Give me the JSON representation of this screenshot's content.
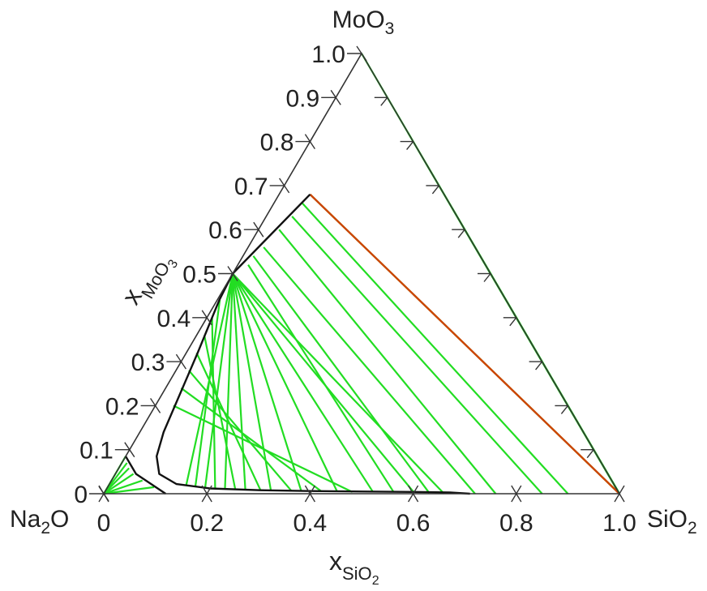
{
  "chart_data": {
    "type": "ternary",
    "components": {
      "bottom_left": "Na",
      "bottom_left_sub": "2",
      "bottom_left_tail": "O",
      "bottom_right": "SiO",
      "bottom_right_sub": "2",
      "top": "MoO",
      "top_sub": "3"
    },
    "xlabel": "x",
    "xlabel_sub": "SiO",
    "xlabel_sub2": "2",
    "ylabel": "x",
    "ylabel_sub": "MoO",
    "ylabel_sub2": "3",
    "x_ticks": [
      {
        "value": 0,
        "label": "0"
      },
      {
        "value": 0.2,
        "label": "0.2"
      },
      {
        "value": 0.4,
        "label": "0.4"
      },
      {
        "value": 0.6,
        "label": "0.6"
      },
      {
        "value": 0.8,
        "label": "0.8"
      },
      {
        "value": 1.0,
        "label": "1.0"
      }
    ],
    "y_ticks": [
      {
        "value": 0,
        "label": "0"
      },
      {
        "value": 0.1,
        "label": "0.1"
      },
      {
        "value": 0.2,
        "label": "0.2"
      },
      {
        "value": 0.3,
        "label": "0.3"
      },
      {
        "value": 0.4,
        "label": "0.4"
      },
      {
        "value": 0.5,
        "label": "0.5"
      },
      {
        "value": 0.6,
        "label": "0.6"
      },
      {
        "value": 0.7,
        "label": "0.7"
      },
      {
        "value": 0.8,
        "label": "0.8"
      },
      {
        "value": 0.9,
        "label": "0.9"
      },
      {
        "value": 1.0,
        "label": "1.0"
      }
    ],
    "right_edge_ticks": [
      0.1,
      0.2,
      0.3,
      0.4,
      0.5,
      0.6,
      0.7,
      0.8,
      0.9
    ],
    "phase_boundary_main": [
      [
        0.0,
        0.5
      ],
      [
        0.004,
        0.44
      ],
      [
        0.013,
        0.38
      ],
      [
        0.022,
        0.32
      ],
      [
        0.03,
        0.26
      ],
      [
        0.038,
        0.2
      ],
      [
        0.046,
        0.14
      ],
      [
        0.06,
        0.085
      ],
      [
        0.085,
        0.045
      ],
      [
        0.13,
        0.022
      ],
      [
        0.2,
        0.012
      ],
      [
        0.3,
        0.008
      ],
      [
        0.4,
        0.006
      ],
      [
        0.5,
        0.005
      ],
      [
        0.6,
        0.004
      ],
      [
        0.67,
        0.003
      ],
      [
        0.71,
        0.0
      ]
    ],
    "phase_boundary_upper": [
      [
        0.0,
        0.5
      ],
      [
        0.06,
        0.68
      ]
    ],
    "phase_boundary_corner": [
      [
        0.0,
        0.085
      ],
      [
        0.04,
        0.045
      ],
      [
        0.12,
        0.0
      ]
    ],
    "tie_lines": [
      {
        "from": [
          0.0,
          0.5
        ],
        "to": [
          0.15,
          0.02
        ]
      },
      {
        "from": [
          0.0,
          0.5
        ],
        "to": [
          0.19,
          0.013
        ]
      },
      {
        "from": [
          0.0,
          0.5
        ],
        "to": [
          0.23,
          0.01
        ]
      },
      {
        "from": [
          0.0,
          0.5
        ],
        "to": [
          0.27,
          0.009
        ]
      },
      {
        "from": [
          0.0,
          0.5
        ],
        "to": [
          0.32,
          0.008
        ]
      },
      {
        "from": [
          0.0,
          0.5
        ],
        "to": [
          0.38,
          0.006
        ]
      },
      {
        "from": [
          0.0,
          0.5
        ],
        "to": [
          0.45,
          0.005
        ]
      },
      {
        "from": [
          0.0,
          0.5
        ],
        "to": [
          0.52,
          0.004
        ]
      },
      {
        "from": [
          0.0,
          0.5
        ],
        "to": [
          0.6,
          0.003
        ]
      },
      {
        "from": [
          0.0,
          0.5
        ],
        "to": [
          0.66,
          0.0
        ]
      },
      {
        "from": [
          0.005,
          0.44
        ],
        "to": [
          0.17,
          0.015
        ]
      },
      {
        "from": [
          0.01,
          0.4
        ],
        "to": [
          0.21,
          0.012
        ]
      },
      {
        "from": [
          0.015,
          0.36
        ],
        "to": [
          0.25,
          0.01
        ]
      },
      {
        "from": [
          0.02,
          0.32
        ],
        "to": [
          0.3,
          0.008
        ]
      },
      {
        "from": [
          0.025,
          0.28
        ],
        "to": [
          0.36,
          0.007
        ]
      },
      {
        "from": [
          0.03,
          0.24
        ],
        "to": [
          0.42,
          0.005
        ]
      },
      {
        "from": [
          0.035,
          0.2
        ],
        "to": [
          0.48,
          0.004
        ]
      },
      {
        "from": [
          0.02,
          0.52
        ],
        "to": [
          0.56,
          0.004
        ]
      },
      {
        "from": [
          0.02,
          0.54
        ],
        "to": [
          0.63,
          0.002
        ]
      },
      {
        "from": [
          0.03,
          0.56
        ],
        "to": [
          0.72,
          0.0
        ]
      },
      {
        "from": [
          0.04,
          0.6
        ],
        "to": [
          0.76,
          0.0
        ]
      },
      {
        "from": [
          0.05,
          0.63
        ],
        "to": [
          0.85,
          0.0
        ]
      },
      {
        "from": [
          0.055,
          0.66
        ],
        "to": [
          0.9,
          0.0
        ]
      },
      {
        "from": [
          0.06,
          0.68
        ],
        "to": [
          1.0,
          0.0
        ]
      },
      {
        "from": [
          0.18,
          0.82
        ],
        "to": [
          1.0,
          0.0
        ]
      },
      {
        "from": [
          0.25,
          0.75
        ],
        "to": [
          1.0,
          0.0
        ]
      },
      {
        "from": [
          0.35,
          0.65
        ],
        "to": [
          1.0,
          0.0
        ]
      },
      {
        "from": [
          0.43,
          0.57
        ],
        "to": [
          1.0,
          0.0
        ]
      },
      {
        "from": [
          0.49,
          0.51
        ],
        "to": [
          1.0,
          0.0
        ]
      },
      {
        "from": [
          0.0,
          1.0
        ],
        "to": [
          1.0,
          0.0
        ]
      },
      {
        "from": [
          0.0,
          0.085
        ],
        "to": [
          0.0,
          0.0
        ]
      },
      {
        "from": [
          0.01,
          0.07
        ],
        "to": [
          0.0,
          0.0
        ]
      },
      {
        "from": [
          0.02,
          0.058
        ],
        "to": [
          0.0,
          0.0
        ]
      },
      {
        "from": [
          0.035,
          0.045
        ],
        "to": [
          0.0,
          0.0
        ]
      },
      {
        "from": [
          0.06,
          0.03
        ],
        "to": [
          0.0,
          0.0
        ]
      },
      {
        "from": [
          0.09,
          0.015
        ],
        "to": [
          0.0,
          0.0
        ]
      }
    ],
    "highlight_line": {
      "from": [
        0.06,
        0.68
      ],
      "to": [
        1.0,
        0.0
      ]
    },
    "colors": {
      "frame": "#333333",
      "tie_line": "#22dd22",
      "boundary": "#111111",
      "highlight": "#cc4400"
    }
  }
}
